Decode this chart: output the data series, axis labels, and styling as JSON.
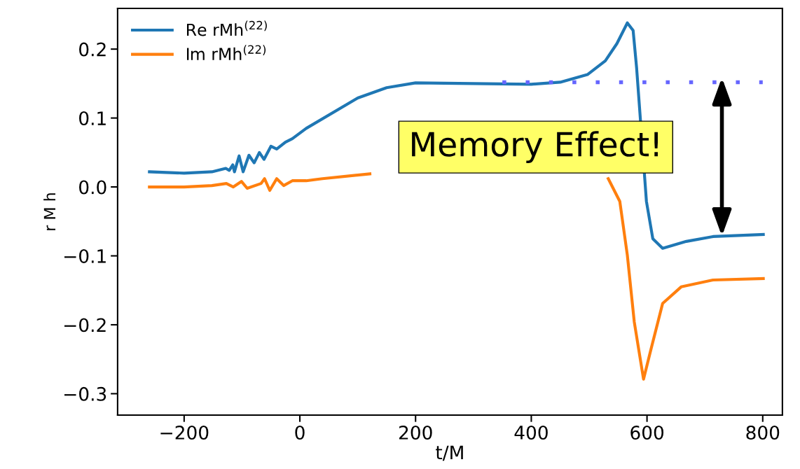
{
  "chart_data": {
    "type": "line",
    "xlabel": "t/M",
    "ylabel": "r M h",
    "xlim": [
      -315,
      834
    ],
    "ylim": [
      -0.331,
      0.259
    ],
    "xticks": [
      {
        "value": -200,
        "label": "−200"
      },
      0,
      200,
      400,
      600,
      800
    ],
    "yticks": [
      {
        "value": -0.3,
        "label": "−0.3"
      },
      {
        "value": -0.2,
        "label": "−0.2"
      },
      {
        "value": -0.1,
        "label": "−0.1"
      },
      {
        "value": 0.0,
        "label": "0.0"
      },
      0.1,
      0.2
    ],
    "grid": false,
    "legend": "top left",
    "annotations": [
      "Memory Effect!"
    ],
    "series": [
      {
        "name": "Re rMh$^{(22)}$",
        "color": "#1f77b4",
        "line_style": "solid",
        "x": [
          -260,
          -200,
          -152,
          -128,
          -122,
          -116,
          -113,
          -105,
          -98,
          -88,
          -79,
          -70,
          -62,
          -50,
          -40,
          -25,
          -13,
          11,
          100,
          150,
          200,
          300,
          400,
          450,
          497,
          528,
          548,
          566,
          576,
          582,
          599,
          610,
          627,
          668,
          714,
          801
        ],
        "values": [
          0.022,
          0.02,
          0.022,
          0.027,
          0.024,
          0.032,
          0.022,
          0.045,
          0.022,
          0.046,
          0.035,
          0.05,
          0.04,
          0.059,
          0.055,
          0.065,
          0.07,
          0.085,
          0.129,
          0.144,
          0.151,
          0.15,
          0.149,
          0.152,
          0.163,
          0.183,
          0.208,
          0.238,
          0.227,
          0.173,
          -0.021,
          -0.075,
          -0.089,
          -0.079,
          -0.072,
          -0.069
        ]
      },
      {
        "name": "Im rMh$^{(22)}$",
        "color": "#ff7f0e",
        "line_style": "solid",
        "x": [
          -260,
          -200,
          -152,
          -127,
          -115,
          -101,
          -91,
          -67,
          -61,
          -52,
          -40,
          -28,
          -13,
          11,
          39,
          121,
          300,
          533,
          553,
          566,
          578,
          594,
          607,
          627,
          659,
          714,
          801
        ],
        "values": [
          0.0,
          0.0,
          0.002,
          0.005,
          0.0,
          0.008,
          -0.002,
          0.005,
          0.012,
          -0.005,
          0.012,
          0.002,
          0.009,
          0.009,
          0.012,
          0.019,
          null,
          0.012,
          -0.021,
          -0.099,
          -0.196,
          -0.279,
          -0.235,
          -0.169,
          -0.145,
          -0.135,
          -0.133
        ]
      },
      {
        "color": "#6666ff",
        "line_style": "dotted",
        "x": [
          350,
          800
        ],
        "values": [
          0.152,
          0.152
        ]
      }
    ]
  }
}
